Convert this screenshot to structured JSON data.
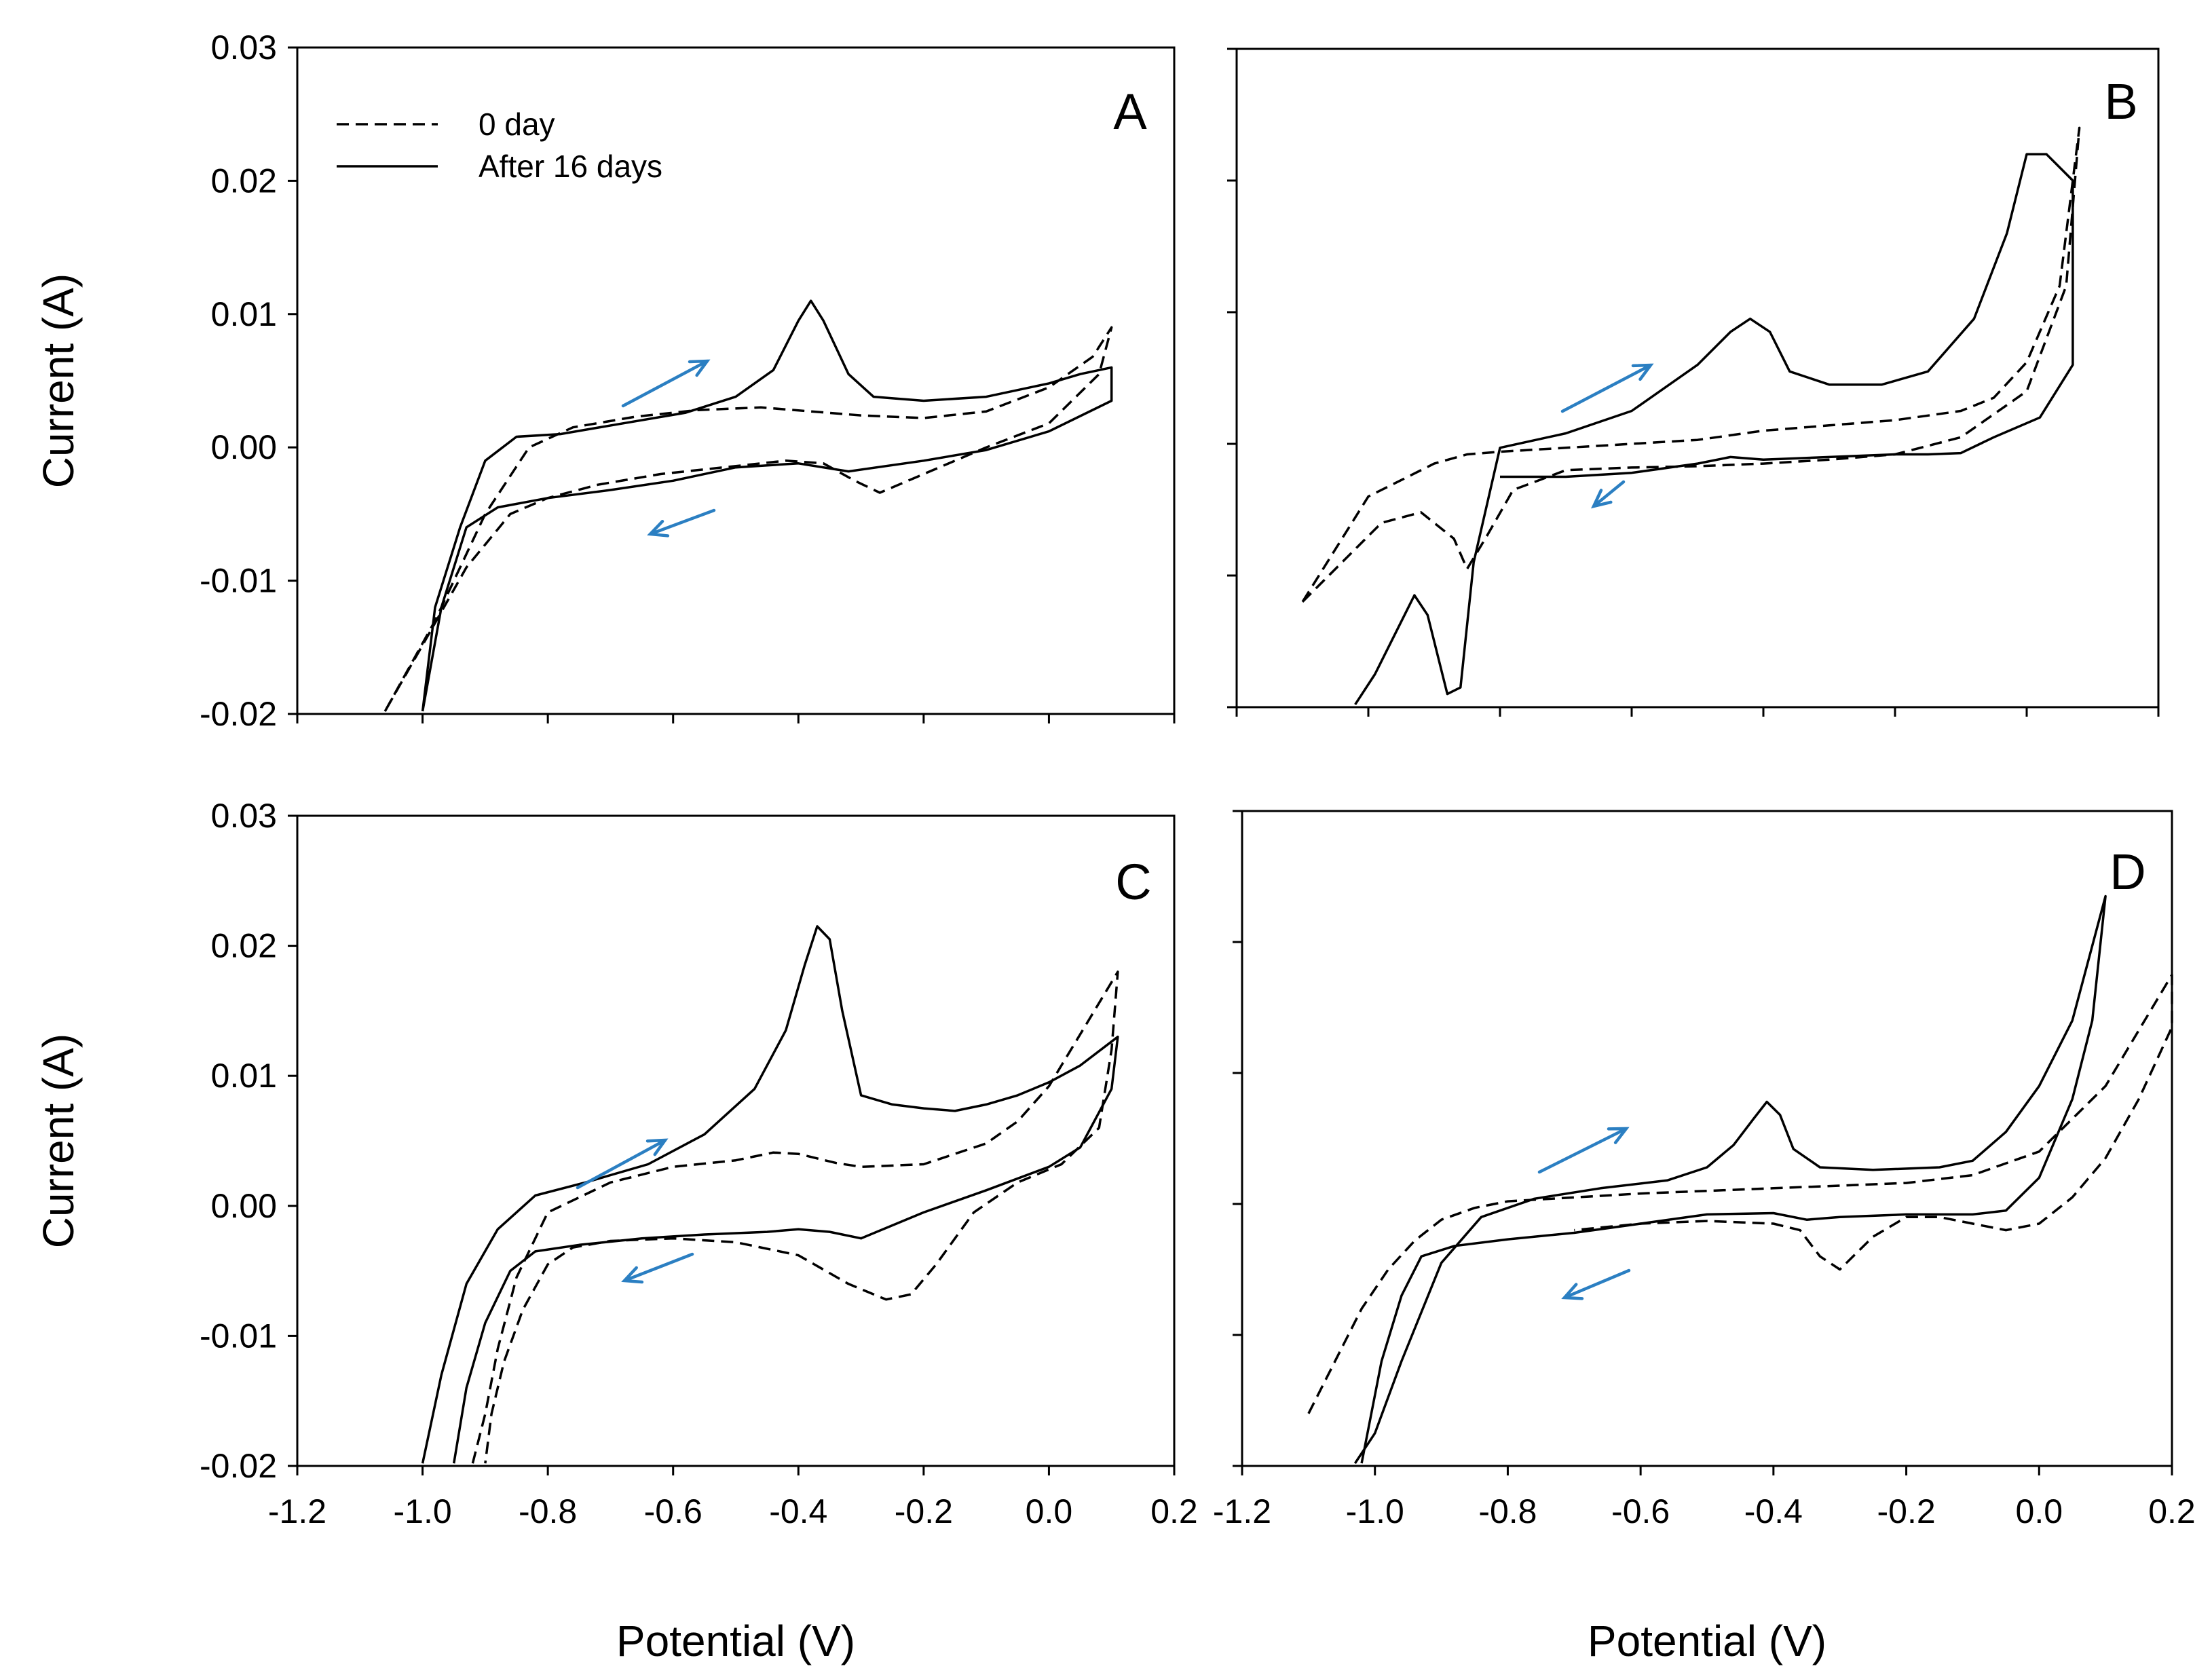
{
  "chart_data": [
    {
      "type": "line",
      "panel": "A",
      "xlabel": "",
      "ylabel": "Current (A)",
      "xlim": [
        -1.2,
        0.2
      ],
      "ylim": [
        -0.02,
        0.03
      ],
      "xticks": [],
      "yticks": [
        "0.03",
        "0.02",
        "0.01",
        "0.00",
        "-0.01",
        "-0.02"
      ],
      "legend": {
        "position": "top-left",
        "entries": [
          "0 day",
          "After 16 days"
        ]
      },
      "series": [
        {
          "name": "0 day",
          "style": "dashed",
          "x": [
            -1.06,
            -0.98,
            -0.9,
            -0.83,
            -0.76,
            -0.66,
            -0.56,
            -0.46,
            -0.38,
            -0.3,
            -0.2,
            -0.1,
            0.0,
            0.07,
            0.1,
            0.08,
            0.0,
            -0.1,
            -0.2,
            -0.27,
            -0.31,
            -0.36,
            -0.42,
            -0.52,
            -0.62,
            -0.72,
            -0.8,
            -0.86,
            -0.93,
            -0.99,
            -1.06
          ],
          "y": [
            -0.0198,
            -0.013,
            -0.005,
            0.0,
            0.0015,
            0.0023,
            0.0028,
            0.003,
            0.0027,
            0.0024,
            0.0022,
            0.0027,
            0.0045,
            0.0068,
            0.009,
            0.0055,
            0.0018,
            0.0,
            -0.002,
            -0.0034,
            -0.0025,
            -0.0012,
            -0.001,
            -0.0015,
            -0.002,
            -0.0028,
            -0.0038,
            -0.005,
            -0.009,
            -0.014,
            -0.0198
          ]
        },
        {
          "name": "After 16 days",
          "style": "solid",
          "x": [
            -1.0,
            -0.98,
            -0.94,
            -0.9,
            -0.85,
            -0.78,
            -0.68,
            -0.58,
            -0.5,
            -0.44,
            -0.4,
            -0.38,
            -0.36,
            -0.32,
            -0.28,
            -0.2,
            -0.1,
            0.0,
            0.05,
            0.1,
            0.1,
            0.0,
            -0.1,
            -0.2,
            -0.32,
            -0.4,
            -0.5,
            -0.6,
            -0.7,
            -0.8,
            -0.88,
            -0.93,
            -0.97,
            -1.0
          ],
          "y": [
            -0.0198,
            -0.012,
            -0.006,
            -0.001,
            0.0008,
            0.001,
            0.0018,
            0.0026,
            0.0038,
            0.0058,
            0.0095,
            0.011,
            0.0095,
            0.0055,
            0.0038,
            0.0035,
            0.0038,
            0.0048,
            0.0055,
            0.006,
            0.0035,
            0.0012,
            -0.0002,
            -0.001,
            -0.0018,
            -0.0012,
            -0.0015,
            -0.0025,
            -0.0032,
            -0.0038,
            -0.0045,
            -0.006,
            -0.012,
            -0.0198
          ]
        }
      ]
    },
    {
      "type": "line",
      "panel": "B",
      "xlabel": "",
      "ylabel": "",
      "xlim": [
        -1.2,
        0.2
      ],
      "ylim": [
        -0.02,
        0.03
      ],
      "xticks": [],
      "yticks": [],
      "series": [
        {
          "name": "0 day",
          "style": "dashed",
          "x": [
            -1.1,
            -1.08,
            -1.04,
            -0.98,
            -0.92,
            -0.87,
            -0.85,
            -0.82,
            -0.78,
            -0.7,
            -0.6,
            -0.5,
            -0.4,
            -0.3,
            -0.2,
            -0.1,
            0.0,
            0.06,
            0.08,
            0.05,
            0.0,
            -0.05,
            -0.1,
            -0.2,
            -0.3,
            -0.4,
            -0.5,
            -0.6,
            -0.7,
            -0.8,
            -0.85,
            -0.9,
            -1.0,
            -1.05,
            -1.1
          ],
          "y": [
            -0.012,
            -0.011,
            -0.009,
            -0.006,
            -0.0052,
            -0.0072,
            -0.0095,
            -0.007,
            -0.0035,
            -0.002,
            -0.0018,
            -0.0017,
            -0.0015,
            -0.0012,
            -0.0008,
            0.0005,
            0.004,
            0.012,
            0.024,
            0.012,
            0.0062,
            0.0035,
            0.0025,
            0.0018,
            0.0014,
            0.001,
            0.0003,
            0.0,
            -0.0003,
            -0.0006,
            -0.0008,
            -0.0015,
            -0.004,
            -0.008,
            -0.012
          ]
        },
        {
          "name": "After 16 days",
          "style": "solid",
          "x": [
            -1.02,
            -0.99,
            -0.96,
            -0.93,
            -0.91,
            -0.88,
            -0.86,
            -0.84,
            -0.8,
            -0.7,
            -0.6,
            -0.5,
            -0.45,
            -0.42,
            -0.39,
            -0.36,
            -0.3,
            -0.22,
            -0.15,
            -0.08,
            -0.03,
            0.0,
            0.03,
            0.07,
            0.07,
            0.02,
            -0.05,
            -0.1,
            -0.15,
            -0.2,
            -0.3,
            -0.4,
            -0.45,
            -0.5,
            -0.6,
            -0.7,
            -0.75,
            -0.8
          ],
          "y": [
            -0.0198,
            -0.0175,
            -0.0145,
            -0.0115,
            -0.013,
            -0.019,
            -0.0185,
            -0.009,
            -0.0003,
            0.0008,
            0.0025,
            0.006,
            0.0085,
            0.0095,
            0.0085,
            0.0055,
            0.0045,
            0.0045,
            0.0055,
            0.0095,
            0.016,
            0.022,
            0.022,
            0.02,
            0.006,
            0.002,
            0.0005,
            -0.0007,
            -0.0008,
            -0.0008,
            -0.001,
            -0.0012,
            -0.001,
            -0.0015,
            -0.0022,
            -0.0025,
            -0.0025,
            -0.0025
          ]
        }
      ]
    },
    {
      "type": "line",
      "panel": "C",
      "xlabel": "Potential (V)",
      "ylabel": "Current (A)",
      "xlim": [
        -1.2,
        0.2
      ],
      "ylim": [
        -0.02,
        0.03
      ],
      "xticks": [
        "-1.2",
        "-1.0",
        "-0.8",
        "-0.6",
        "-0.4",
        "-0.2",
        "0.0",
        "0.2"
      ],
      "yticks": [
        "0.03",
        "0.02",
        "0.01",
        "0.00",
        "-0.01",
        "-0.02"
      ],
      "series": [
        {
          "name": "0 day",
          "style": "dashed",
          "x": [
            -0.92,
            -0.9,
            -0.88,
            -0.85,
            -0.8,
            -0.7,
            -0.6,
            -0.5,
            -0.44,
            -0.4,
            -0.34,
            -0.3,
            -0.2,
            -0.1,
            -0.05,
            0.0,
            0.06,
            0.11,
            0.1,
            0.08,
            0.02,
            -0.05,
            -0.12,
            -0.18,
            -0.22,
            -0.26,
            -0.32,
            -0.4,
            -0.5,
            -0.6,
            -0.7,
            -0.76,
            -0.8,
            -0.84,
            -0.87,
            -0.89,
            -0.9
          ],
          "y": [
            -0.0198,
            -0.016,
            -0.011,
            -0.0055,
            -0.0005,
            0.0018,
            0.003,
            0.0035,
            0.0041,
            0.004,
            0.0033,
            0.003,
            0.0032,
            0.0048,
            0.0065,
            0.0092,
            0.014,
            0.018,
            0.012,
            0.006,
            0.0032,
            0.0018,
            -0.0005,
            -0.0045,
            -0.0068,
            -0.0072,
            -0.006,
            -0.0038,
            -0.0028,
            -0.0025,
            -0.0027,
            -0.0032,
            -0.0045,
            -0.008,
            -0.012,
            -0.016,
            -0.0198
          ]
        },
        {
          "name": "After 16 days",
          "style": "solid",
          "x": [
            -1.0,
            -0.97,
            -0.93,
            -0.88,
            -0.82,
            -0.74,
            -0.64,
            -0.55,
            -0.47,
            -0.42,
            -0.39,
            -0.37,
            -0.35,
            -0.33,
            -0.3,
            -0.25,
            -0.2,
            -0.15,
            -0.1,
            -0.05,
            0.0,
            0.05,
            0.11,
            0.1,
            0.05,
            0.0,
            -0.1,
            -0.2,
            -0.3,
            -0.35,
            -0.4,
            -0.45,
            -0.55,
            -0.65,
            -0.75,
            -0.82,
            -0.86,
            -0.9,
            -0.93,
            -0.95
          ],
          "y": [
            -0.0198,
            -0.013,
            -0.006,
            -0.0018,
            0.0008,
            0.0018,
            0.0032,
            0.0055,
            0.009,
            0.0135,
            0.0185,
            0.0215,
            0.0205,
            0.015,
            0.0085,
            0.0078,
            0.0075,
            0.0073,
            0.0078,
            0.0085,
            0.0095,
            0.0108,
            0.013,
            0.009,
            0.0045,
            0.003,
            0.0012,
            -0.0005,
            -0.0025,
            -0.002,
            -0.0018,
            -0.002,
            -0.0022,
            -0.0025,
            -0.003,
            -0.0035,
            -0.005,
            -0.009,
            -0.014,
            -0.0198
          ]
        }
      ]
    },
    {
      "type": "line",
      "panel": "D",
      "xlabel": "Potential (V)",
      "ylabel": "",
      "xlim": [
        -1.2,
        0.2
      ],
      "ylim": [
        -0.02,
        0.03
      ],
      "xticks": [
        "-1.2",
        "-1.0",
        "-0.8",
        "-0.6",
        "-0.4",
        "-0.2",
        "0.0",
        "0.2"
      ],
      "yticks": [],
      "series": [
        {
          "name": "0 day",
          "style": "dashed",
          "x": [
            -1.1,
            -1.06,
            -1.02,
            -0.98,
            -0.94,
            -0.9,
            -0.85,
            -0.8,
            -0.7,
            -0.6,
            -0.5,
            -0.4,
            -0.3,
            -0.2,
            -0.1,
            0.0,
            0.1,
            0.2,
            0.2,
            0.15,
            0.1,
            0.05,
            0.0,
            -0.05,
            -0.1,
            -0.15,
            -0.2,
            -0.25,
            -0.3,
            -0.33,
            -0.36,
            -0.4,
            -0.5,
            -0.6,
            -0.7
          ],
          "y": [
            -0.016,
            -0.012,
            -0.008,
            -0.005,
            -0.0028,
            -0.0012,
            -0.0003,
            0.0002,
            0.0005,
            0.0008,
            0.001,
            0.0012,
            0.0014,
            0.0016,
            0.0022,
            0.004,
            0.009,
            0.0175,
            0.0135,
            0.008,
            0.0035,
            0.0005,
            -0.0015,
            -0.002,
            -0.0015,
            -0.001,
            -0.001,
            -0.0025,
            -0.005,
            -0.004,
            -0.002,
            -0.0015,
            -0.0013,
            -0.0015,
            -0.002
          ]
        },
        {
          "name": "After 16 days",
          "style": "solid",
          "x": [
            -1.03,
            -1.0,
            -0.96,
            -0.9,
            -0.84,
            -0.76,
            -0.66,
            -0.56,
            -0.5,
            -0.46,
            -0.43,
            -0.41,
            -0.39,
            -0.37,
            -0.33,
            -0.25,
            -0.15,
            -0.1,
            -0.05,
            0.0,
            0.05,
            0.1,
            0.08,
            0.05,
            0.0,
            -0.05,
            -0.1,
            -0.2,
            -0.3,
            -0.35,
            -0.4,
            -0.5,
            -0.6,
            -0.7,
            -0.8,
            -0.88,
            -0.93,
            -0.96,
            -0.99,
            -1.02
          ],
          "y": [
            -0.0198,
            -0.0175,
            -0.012,
            -0.0045,
            -0.001,
            0.0004,
            0.0012,
            0.0018,
            0.0028,
            0.0045,
            0.0065,
            0.0078,
            0.0068,
            0.0042,
            0.0028,
            0.0026,
            0.0028,
            0.0033,
            0.0055,
            0.009,
            0.014,
            0.0235,
            0.014,
            0.008,
            0.002,
            -0.0005,
            -0.0008,
            -0.0008,
            -0.001,
            -0.0012,
            -0.0007,
            -0.0008,
            -0.0015,
            -0.0022,
            -0.0027,
            -0.0032,
            -0.004,
            -0.007,
            -0.012,
            -0.0198
          ]
        }
      ]
    }
  ]
}
